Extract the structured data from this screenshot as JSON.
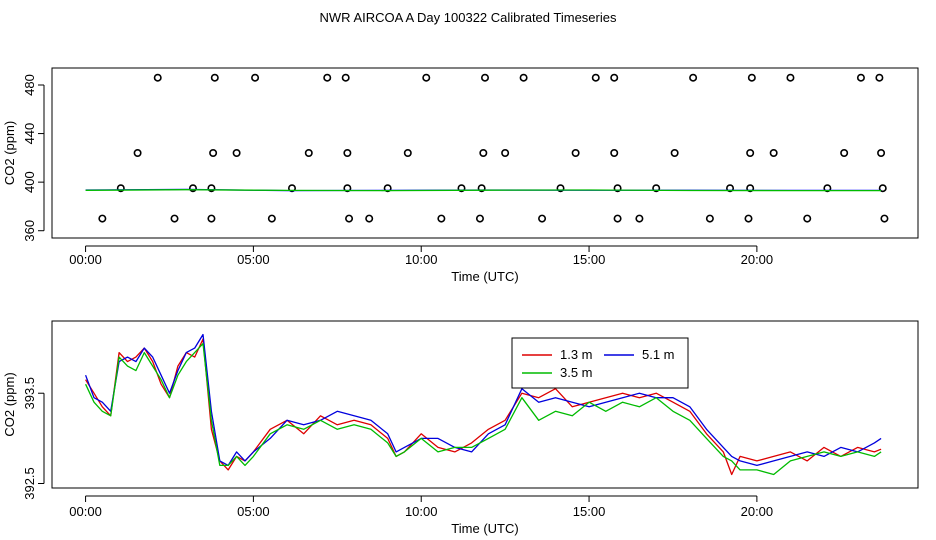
{
  "title": "NWR AIRCOA A  Day 100322  Calibrated Timeseries",
  "chart_data": [
    {
      "type": "scatter",
      "name": "status-panel",
      "xlabel": "Time (UTC)",
      "ylabel": "CO2 (ppm)",
      "xlim": [
        -1.0,
        24.8
      ],
      "ylim": [
        354,
        494
      ],
      "xticks": [
        0,
        5,
        10,
        15,
        20
      ],
      "xtick_labels": [
        "00:00",
        "05:00",
        "10:00",
        "15:00",
        "20:00"
      ],
      "yticks": [
        360,
        400,
        440,
        480
      ],
      "ytick_labels": [
        "360",
        "400",
        "440",
        "480"
      ],
      "series": [
        {
          "name": "calibration-circles",
          "marker": "open-circle",
          "color": "#000000",
          "x": [
            2.15,
            3.85,
            5.05,
            7.2,
            7.75,
            10.15,
            11.9,
            13.05,
            15.2,
            15.75,
            18.1,
            19.85,
            21.0,
            23.1,
            23.65,
            1.55,
            3.8,
            4.5,
            6.65,
            7.8,
            9.6,
            11.85,
            12.5,
            14.6,
            15.75,
            17.55,
            19.8,
            20.5,
            22.6,
            23.7,
            1.05,
            3.2,
            3.75,
            6.15,
            7.8,
            9.0,
            11.2,
            11.8,
            14.15,
            15.85,
            17.0,
            19.2,
            19.8,
            22.1,
            23.75,
            0.5,
            2.65,
            3.75,
            5.55,
            7.85,
            8.45,
            10.6,
            11.75,
            13.6,
            15.85,
            16.5,
            18.6,
            19.75,
            21.5,
            23.8
          ],
          "y": [
            486,
            486,
            486,
            486,
            486,
            486,
            486,
            486,
            486,
            486,
            486,
            486,
            486,
            486,
            486,
            424,
            424,
            424,
            424,
            424,
            424,
            424,
            424,
            424,
            424,
            424,
            424,
            424,
            424,
            424,
            395,
            395,
            395,
            395,
            395,
            395,
            395,
            395,
            395,
            395,
            395,
            395,
            395,
            395,
            395,
            370,
            370,
            370,
            370,
            370,
            370,
            370,
            370,
            370,
            370,
            370,
            370,
            370,
            370,
            370
          ]
        },
        {
          "name": "5.1 m",
          "type": "line",
          "color": "#0000ff",
          "x": [
            0,
            3,
            6,
            9,
            12,
            15,
            18,
            21,
            23.7
          ],
          "y": [
            393.5,
            394.0,
            393.0,
            393.2,
            393.5,
            393.4,
            393.3,
            393.2,
            393.2
          ]
        },
        {
          "name": "3.5 m",
          "type": "line",
          "color": "#00bb00",
          "x": [
            0,
            3,
            6,
            9,
            12,
            15,
            18,
            21,
            23.7
          ],
          "y": [
            393.3,
            393.8,
            393.2,
            393.0,
            393.4,
            393.5,
            393.1,
            393.0,
            393.0
          ]
        }
      ]
    },
    {
      "type": "line",
      "name": "timeseries-panel",
      "xlabel": "Time (UTC)",
      "ylabel": "CO2 (ppm)",
      "xlim": [
        -1.0,
        24.8
      ],
      "ylim": [
        392.45,
        394.3
      ],
      "xticks": [
        0,
        5,
        10,
        15,
        20
      ],
      "xtick_labels": [
        "00:00",
        "05:00",
        "10:00",
        "15:00",
        "20:00"
      ],
      "yticks": [
        392.5,
        393.5
      ],
      "ytick_labels": [
        "392.5",
        "393.5"
      ],
      "legend": {
        "position": "top-center",
        "entries": [
          "1.3 m",
          "5.1 m",
          "3.5 m"
        ]
      },
      "series": [
        {
          "name": "1.3 m",
          "color": "#dd0000",
          "x": [
            0,
            0.25,
            0.5,
            0.75,
            1.0,
            1.25,
            1.5,
            1.75,
            2.0,
            2.25,
            2.5,
            2.75,
            3.0,
            3.25,
            3.5,
            3.75,
            4.0,
            4.25,
            4.5,
            4.75,
            5.0,
            5.5,
            6.0,
            6.5,
            7.0,
            7.5,
            8.0,
            8.5,
            9.0,
            9.25,
            9.5,
            10.0,
            10.5,
            11.0,
            11.5,
            12.0,
            12.5,
            13.0,
            13.5,
            14.0,
            14.5,
            15.0,
            15.5,
            16.0,
            16.5,
            17.0,
            17.5,
            18.0,
            18.5,
            19.0,
            19.25,
            19.5,
            20.0,
            20.5,
            21.0,
            21.5,
            22.0,
            22.5,
            23.0,
            23.5,
            23.7
          ],
          "y": [
            393.65,
            393.5,
            393.35,
            393.25,
            393.95,
            393.85,
            393.9,
            394.0,
            393.85,
            393.6,
            393.45,
            393.8,
            393.95,
            393.9,
            394.1,
            393.1,
            392.75,
            392.65,
            392.8,
            392.75,
            392.85,
            393.1,
            393.2,
            393.05,
            393.25,
            393.15,
            393.2,
            393.15,
            393.0,
            392.8,
            392.85,
            393.05,
            392.9,
            392.85,
            392.95,
            393.1,
            393.2,
            393.5,
            393.45,
            393.55,
            393.35,
            393.4,
            393.45,
            393.5,
            393.45,
            393.5,
            393.4,
            393.3,
            393.05,
            392.85,
            392.6,
            392.8,
            392.75,
            392.8,
            392.85,
            392.75,
            392.9,
            392.8,
            392.9,
            392.85,
            392.88
          ]
        },
        {
          "name": "5.1 m",
          "color": "#0000dd",
          "x": [
            0,
            0.25,
            0.5,
            0.75,
            1.0,
            1.25,
            1.5,
            1.75,
            2.0,
            2.25,
            2.5,
            2.75,
            3.0,
            3.25,
            3.5,
            3.75,
            4.0,
            4.25,
            4.5,
            4.75,
            5.0,
            5.5,
            6.0,
            6.5,
            7.0,
            7.5,
            8.0,
            8.5,
            9.0,
            9.25,
            9.5,
            10.0,
            10.5,
            11.0,
            11.5,
            12.0,
            12.5,
            13.0,
            13.5,
            14.0,
            14.5,
            15.0,
            15.5,
            16.0,
            16.5,
            17.0,
            17.5,
            18.0,
            18.5,
            19.0,
            19.25,
            19.5,
            20.0,
            20.5,
            21.0,
            21.5,
            22.0,
            22.5,
            23.0,
            23.5,
            23.7
          ],
          "y": [
            393.7,
            393.45,
            393.4,
            393.3,
            393.85,
            393.9,
            393.85,
            394.0,
            393.9,
            393.7,
            393.5,
            393.75,
            393.95,
            394.0,
            394.15,
            393.3,
            392.75,
            392.7,
            392.85,
            392.75,
            392.85,
            393.0,
            393.2,
            393.15,
            393.2,
            393.3,
            393.25,
            393.2,
            393.05,
            392.85,
            392.9,
            393.0,
            393.0,
            392.9,
            392.85,
            393.05,
            393.15,
            393.55,
            393.4,
            393.45,
            393.4,
            393.35,
            393.4,
            393.45,
            393.5,
            393.45,
            393.45,
            393.35,
            393.1,
            392.9,
            392.8,
            392.75,
            392.7,
            392.75,
            392.8,
            392.85,
            392.8,
            392.9,
            392.85,
            392.95,
            393.0
          ]
        },
        {
          "name": "3.5 m",
          "color": "#00bb00",
          "x": [
            0,
            0.25,
            0.5,
            0.75,
            1.0,
            1.25,
            1.5,
            1.75,
            2.0,
            2.25,
            2.5,
            2.75,
            3.0,
            3.25,
            3.5,
            3.75,
            4.0,
            4.25,
            4.5,
            4.75,
            5.0,
            5.5,
            6.0,
            6.5,
            7.0,
            7.5,
            8.0,
            8.5,
            9.0,
            9.25,
            9.5,
            10.0,
            10.5,
            11.0,
            11.5,
            12.0,
            12.5,
            13.0,
            13.5,
            14.0,
            14.5,
            15.0,
            15.5,
            16.0,
            16.5,
            17.0,
            17.5,
            18.0,
            18.5,
            19.0,
            19.25,
            19.5,
            20.0,
            20.5,
            21.0,
            21.5,
            22.0,
            22.5,
            23.0,
            23.5,
            23.7
          ],
          "y": [
            393.6,
            393.4,
            393.3,
            393.25,
            393.9,
            393.8,
            393.75,
            393.95,
            393.8,
            393.65,
            393.45,
            393.7,
            393.85,
            393.95,
            394.05,
            393.2,
            392.7,
            392.7,
            392.8,
            392.7,
            392.8,
            393.05,
            393.15,
            393.1,
            393.2,
            393.1,
            393.15,
            393.1,
            392.95,
            392.8,
            392.85,
            393.0,
            392.85,
            392.9,
            392.9,
            393.0,
            393.1,
            393.45,
            393.2,
            393.3,
            393.25,
            393.4,
            393.3,
            393.4,
            393.35,
            393.45,
            393.3,
            393.2,
            393.0,
            392.8,
            392.75,
            392.65,
            392.65,
            392.6,
            392.75,
            392.8,
            392.85,
            392.8,
            392.85,
            392.8,
            392.85
          ]
        }
      ]
    }
  ]
}
